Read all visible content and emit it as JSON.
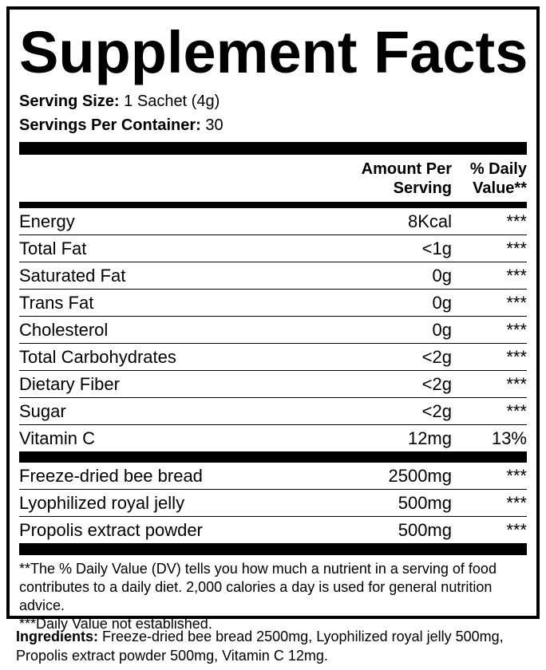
{
  "title": "Supplement Facts",
  "serving_size": {
    "label": "Serving Size:",
    "value": "1 Sachet (4g)"
  },
  "servings_per_container": {
    "label": "Servings Per Container:",
    "value": "30"
  },
  "header": {
    "amount_line1": "Amount Per",
    "amount_line2": "Serving",
    "dv_line1": "% Daily",
    "dv_line2": "Value**"
  },
  "nutrients": [
    {
      "name": "Energy",
      "amount": "8Kcal",
      "dv": "***"
    },
    {
      "name": "Total Fat",
      "amount": "<1g",
      "dv": "***"
    },
    {
      "name": "Saturated Fat",
      "amount": "0g",
      "dv": "***"
    },
    {
      "name": "Trans Fat",
      "amount": "0g",
      "dv": "***"
    },
    {
      "name": "Cholesterol",
      "amount": "0g",
      "dv": "***"
    },
    {
      "name": "Total Carbohydrates",
      "amount": "<2g",
      "dv": "***"
    },
    {
      "name": "Dietary Fiber",
      "amount": "<2g",
      "dv": "***"
    },
    {
      "name": "Sugar",
      "amount": "<2g",
      "dv": "***"
    },
    {
      "name": "Vitamin C",
      "amount": "12mg",
      "dv": "13%"
    }
  ],
  "ingredients_rows": [
    {
      "name": "Freeze-dried bee bread",
      "amount": "2500mg",
      "dv": "***"
    },
    {
      "name": "Lyophilized royal jelly",
      "amount": "500mg",
      "dv": "***"
    },
    {
      "name": "Propolis extract powder",
      "amount": "500mg",
      "dv": "***"
    }
  ],
  "footnotes": {
    "dv_note": "**The % Daily Value (DV) tells you how much a nutrient in a serving of food contributes to a daily diet. 2,000 calories a day is used for general nutrition advice.",
    "not_established": "***Daily Value not established."
  },
  "ingredients": {
    "label": "Ingredients:",
    "text": "Freeze-dried bee bread 2500mg, Lyophilized royal jelly 500mg, Propolis extract powder 500mg, Vitamin C 12mg."
  }
}
